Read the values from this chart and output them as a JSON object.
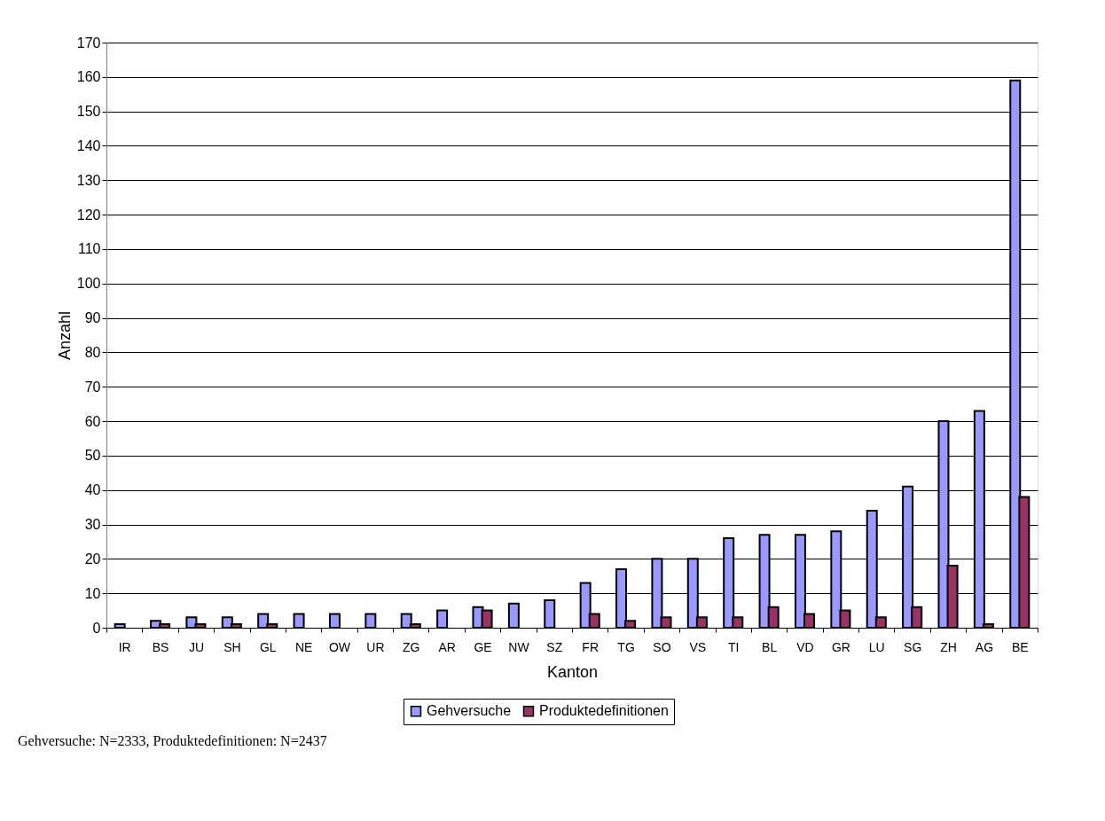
{
  "chart_data": {
    "type": "bar",
    "xlabel": "Kanton",
    "ylabel": "Anzahl",
    "categories": [
      "IR",
      "BS",
      "JU",
      "SH",
      "GL",
      "NE",
      "OW",
      "UR",
      "ZG",
      "AR",
      "GE",
      "NW",
      "SZ",
      "FR",
      "TG",
      "SO",
      "VS",
      "TI",
      "BL",
      "VD",
      "GR",
      "LU",
      "SG",
      "ZH",
      "AG",
      "BE"
    ],
    "series": [
      {
        "name": "Gehversuche",
        "color": "#9999ff",
        "values": [
          1,
          2,
          3,
          3,
          4,
          4,
          4,
          4,
          4,
          5,
          6,
          7,
          8,
          13,
          17,
          20,
          20,
          26,
          27,
          27,
          28,
          34,
          41,
          60,
          63,
          159
        ]
      },
      {
        "name": "Produktedefinitionen",
        "color": "#993366",
        "values": [
          0,
          1,
          1,
          1,
          1,
          0,
          0,
          0,
          1,
          0,
          5,
          0,
          0,
          4,
          2,
          3,
          3,
          3,
          6,
          4,
          5,
          3,
          6,
          18,
          1,
          38
        ]
      }
    ],
    "ylim": [
      0,
      170
    ],
    "yticks": [
      0,
      10,
      20,
      30,
      40,
      50,
      60,
      70,
      80,
      90,
      100,
      110,
      120,
      130,
      140,
      150,
      160,
      170
    ],
    "grid": "y",
    "legend": "bottom",
    "annotations": [
      "Gehversuche: N=2333, Produktedefinitionen: N=2437"
    ]
  }
}
